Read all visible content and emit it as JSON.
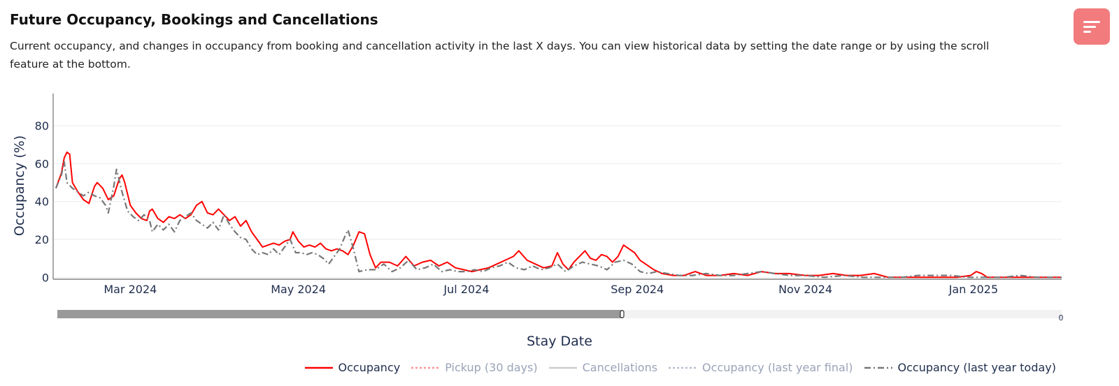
{
  "header": {
    "title": "Future Occupancy, Bookings and Cancellations",
    "description": "Current occupancy, and changes in occupancy from booking and cancellation activity in the last X days. You can view historical data by setting the date range or by using the scroll feature at the bottom."
  },
  "menu_button": {
    "icon": "menu-lines-icon",
    "color": "#f27b7e"
  },
  "slider": {
    "end_label": "0",
    "range_end_label": "0"
  },
  "chart_data": {
    "type": "line",
    "title": "",
    "xlabel": "Stay Date",
    "ylabel": "Occupancy (%)",
    "x_type": "date",
    "xlim": [
      "2024-02-02",
      "2025-02-02"
    ],
    "ylim": [
      -1,
      97
    ],
    "yticks": [
      0,
      20,
      40,
      60,
      80
    ],
    "xticks": [
      {
        "date": "2024-03-01",
        "label": "Mar 2024"
      },
      {
        "date": "2024-05-01",
        "label": "May 2024"
      },
      {
        "date": "2024-07-01",
        "label": "Jul 2024"
      },
      {
        "date": "2024-09-01",
        "label": "Sep 2024"
      },
      {
        "date": "2024-11-01",
        "label": "Nov 2024"
      },
      {
        "date": "2025-01-01",
        "label": "Jan 2025"
      }
    ],
    "grid": true,
    "legend_position": "bottom-right",
    "series": [
      {
        "name": "Occupancy",
        "color": "#ff0000",
        "dash": "solid",
        "visible": true,
        "points": [
          [
            "2024-02-03",
            47
          ],
          [
            "2024-02-05",
            55
          ],
          [
            "2024-02-06",
            63
          ],
          [
            "2024-02-07",
            66
          ],
          [
            "2024-02-08",
            65
          ],
          [
            "2024-02-09",
            50
          ],
          [
            "2024-02-11",
            45
          ],
          [
            "2024-02-13",
            41
          ],
          [
            "2024-02-15",
            39
          ],
          [
            "2024-02-17",
            48
          ],
          [
            "2024-02-18",
            50
          ],
          [
            "2024-02-20",
            47
          ],
          [
            "2024-02-22",
            41
          ],
          [
            "2024-02-24",
            43
          ],
          [
            "2024-02-26",
            52
          ],
          [
            "2024-02-27",
            54
          ],
          [
            "2024-02-28",
            50
          ],
          [
            "2024-03-01",
            38
          ],
          [
            "2024-03-03",
            34
          ],
          [
            "2024-03-05",
            31
          ],
          [
            "2024-03-07",
            30
          ],
          [
            "2024-03-08",
            35
          ],
          [
            "2024-03-09",
            36
          ],
          [
            "2024-03-11",
            31
          ],
          [
            "2024-03-13",
            29
          ],
          [
            "2024-03-15",
            32
          ],
          [
            "2024-03-17",
            31
          ],
          [
            "2024-03-19",
            33
          ],
          [
            "2024-03-21",
            31
          ],
          [
            "2024-03-23",
            33
          ],
          [
            "2024-03-25",
            38
          ],
          [
            "2024-03-27",
            40
          ],
          [
            "2024-03-29",
            34
          ],
          [
            "2024-03-31",
            33
          ],
          [
            "2024-04-02",
            36
          ],
          [
            "2024-04-04",
            33
          ],
          [
            "2024-04-06",
            30
          ],
          [
            "2024-04-08",
            32
          ],
          [
            "2024-04-10",
            27
          ],
          [
            "2024-04-12",
            30
          ],
          [
            "2024-04-14",
            24
          ],
          [
            "2024-04-16",
            20
          ],
          [
            "2024-04-18",
            16
          ],
          [
            "2024-04-20",
            17
          ],
          [
            "2024-04-22",
            18
          ],
          [
            "2024-04-24",
            17
          ],
          [
            "2024-04-26",
            19
          ],
          [
            "2024-04-28",
            20
          ],
          [
            "2024-04-29",
            24
          ],
          [
            "2024-05-01",
            19
          ],
          [
            "2024-05-03",
            16
          ],
          [
            "2024-05-05",
            17
          ],
          [
            "2024-05-07",
            16
          ],
          [
            "2024-05-09",
            18
          ],
          [
            "2024-05-11",
            15
          ],
          [
            "2024-05-13",
            14
          ],
          [
            "2024-05-15",
            15
          ],
          [
            "2024-05-17",
            14
          ],
          [
            "2024-05-19",
            12
          ],
          [
            "2024-05-21",
            17
          ],
          [
            "2024-05-23",
            24
          ],
          [
            "2024-05-25",
            23
          ],
          [
            "2024-05-27",
            12
          ],
          [
            "2024-05-29",
            5
          ],
          [
            "2024-05-31",
            8
          ],
          [
            "2024-06-03",
            8
          ],
          [
            "2024-06-06",
            6
          ],
          [
            "2024-06-09",
            11
          ],
          [
            "2024-06-12",
            6
          ],
          [
            "2024-06-15",
            8
          ],
          [
            "2024-06-18",
            9
          ],
          [
            "2024-06-21",
            6
          ],
          [
            "2024-06-24",
            8
          ],
          [
            "2024-06-27",
            5
          ],
          [
            "2024-06-30",
            4
          ],
          [
            "2024-07-03",
            3
          ],
          [
            "2024-07-06",
            4
          ],
          [
            "2024-07-09",
            5
          ],
          [
            "2024-07-12",
            7
          ],
          [
            "2024-07-15",
            9
          ],
          [
            "2024-07-18",
            11
          ],
          [
            "2024-07-20",
            14
          ],
          [
            "2024-07-23",
            9
          ],
          [
            "2024-07-26",
            7
          ],
          [
            "2024-07-29",
            5
          ],
          [
            "2024-08-01",
            6
          ],
          [
            "2024-08-03",
            13
          ],
          [
            "2024-08-05",
            7
          ],
          [
            "2024-08-07",
            4
          ],
          [
            "2024-08-09",
            8
          ],
          [
            "2024-08-11",
            11
          ],
          [
            "2024-08-13",
            14
          ],
          [
            "2024-08-15",
            10
          ],
          [
            "2024-08-17",
            9
          ],
          [
            "2024-08-19",
            12
          ],
          [
            "2024-08-21",
            11
          ],
          [
            "2024-08-23",
            8
          ],
          [
            "2024-08-25",
            11
          ],
          [
            "2024-08-27",
            17
          ],
          [
            "2024-08-29",
            15
          ],
          [
            "2024-08-31",
            13
          ],
          [
            "2024-09-02",
            9
          ],
          [
            "2024-09-04",
            7
          ],
          [
            "2024-09-07",
            4
          ],
          [
            "2024-09-10",
            2
          ],
          [
            "2024-09-14",
            1
          ],
          [
            "2024-09-18",
            1
          ],
          [
            "2024-09-22",
            3
          ],
          [
            "2024-09-26",
            1
          ],
          [
            "2024-10-01",
            1
          ],
          [
            "2024-10-06",
            2
          ],
          [
            "2024-10-11",
            1
          ],
          [
            "2024-10-16",
            3
          ],
          [
            "2024-10-21",
            2
          ],
          [
            "2024-10-26",
            2
          ],
          [
            "2024-11-01",
            1
          ],
          [
            "2024-11-06",
            1
          ],
          [
            "2024-11-11",
            2
          ],
          [
            "2024-11-16",
            1
          ],
          [
            "2024-11-21",
            1
          ],
          [
            "2024-11-26",
            2
          ],
          [
            "2024-12-01",
            0
          ],
          [
            "2024-12-06",
            0
          ],
          [
            "2024-12-11",
            0
          ],
          [
            "2024-12-16",
            0
          ],
          [
            "2024-12-21",
            0
          ],
          [
            "2024-12-26",
            0
          ],
          [
            "2024-12-31",
            1
          ],
          [
            "2025-01-02",
            3
          ],
          [
            "2025-01-04",
            2
          ],
          [
            "2025-01-06",
            0
          ],
          [
            "2025-01-12",
            0
          ],
          [
            "2025-01-20",
            0
          ],
          [
            "2025-01-28",
            0
          ],
          [
            "2025-02-02",
            0
          ]
        ]
      },
      {
        "name": "Pickup (30 days)",
        "color": "#ff6666",
        "dash": "dot",
        "visible": false,
        "points": []
      },
      {
        "name": "Cancellations",
        "color": "#b8b8b8",
        "dash": "solid",
        "visible": false,
        "points": []
      },
      {
        "name": "Occupancy (last year final)",
        "color": "#9aa3b8",
        "dash": "dot",
        "visible": false,
        "points": []
      },
      {
        "name": "Occupancy (last year today)",
        "color": "#777777",
        "dash": "dashdot",
        "visible": true,
        "points": [
          [
            "2024-02-03",
            47
          ],
          [
            "2024-02-05",
            54
          ],
          [
            "2024-02-06",
            61
          ],
          [
            "2024-02-07",
            50
          ],
          [
            "2024-02-09",
            47
          ],
          [
            "2024-02-11",
            45
          ],
          [
            "2024-02-13",
            43
          ],
          [
            "2024-02-15",
            45
          ],
          [
            "2024-02-17",
            43
          ],
          [
            "2024-02-19",
            42
          ],
          [
            "2024-02-21",
            38
          ],
          [
            "2024-02-22",
            34
          ],
          [
            "2024-02-24",
            48
          ],
          [
            "2024-02-25",
            57
          ],
          [
            "2024-02-27",
            45
          ],
          [
            "2024-02-29",
            35
          ],
          [
            "2024-03-02",
            32
          ],
          [
            "2024-03-04",
            30
          ],
          [
            "2024-03-06",
            33
          ],
          [
            "2024-03-08",
            30
          ],
          [
            "2024-03-09",
            24
          ],
          [
            "2024-03-11",
            28
          ],
          [
            "2024-03-13",
            25
          ],
          [
            "2024-03-15",
            28
          ],
          [
            "2024-03-17",
            24
          ],
          [
            "2024-03-19",
            30
          ],
          [
            "2024-03-21",
            32
          ],
          [
            "2024-03-23",
            34
          ],
          [
            "2024-03-25",
            30
          ],
          [
            "2024-03-27",
            28
          ],
          [
            "2024-03-29",
            26
          ],
          [
            "2024-03-31",
            29
          ],
          [
            "2024-04-02",
            25
          ],
          [
            "2024-04-04",
            33
          ],
          [
            "2024-04-06",
            28
          ],
          [
            "2024-04-08",
            24
          ],
          [
            "2024-04-10",
            21
          ],
          [
            "2024-04-12",
            20
          ],
          [
            "2024-04-14",
            15
          ],
          [
            "2024-04-16",
            12
          ],
          [
            "2024-04-18",
            13
          ],
          [
            "2024-04-20",
            12
          ],
          [
            "2024-04-22",
            15
          ],
          [
            "2024-04-24",
            12
          ],
          [
            "2024-04-26",
            16
          ],
          [
            "2024-04-28",
            20
          ],
          [
            "2024-04-30",
            13
          ],
          [
            "2024-05-02",
            13
          ],
          [
            "2024-05-04",
            12
          ],
          [
            "2024-05-06",
            13
          ],
          [
            "2024-05-08",
            12
          ],
          [
            "2024-05-10",
            10
          ],
          [
            "2024-05-12",
            7
          ],
          [
            "2024-05-14",
            11
          ],
          [
            "2024-05-16",
            15
          ],
          [
            "2024-05-18",
            22
          ],
          [
            "2024-05-19",
            25
          ],
          [
            "2024-05-21",
            15
          ],
          [
            "2024-05-23",
            3
          ],
          [
            "2024-05-26",
            4
          ],
          [
            "2024-05-29",
            4
          ],
          [
            "2024-06-01",
            7
          ],
          [
            "2024-06-04",
            3
          ],
          [
            "2024-06-07",
            5
          ],
          [
            "2024-06-10",
            9
          ],
          [
            "2024-06-13",
            4
          ],
          [
            "2024-06-16",
            5
          ],
          [
            "2024-06-19",
            7
          ],
          [
            "2024-06-22",
            3
          ],
          [
            "2024-06-25",
            4
          ],
          [
            "2024-06-28",
            3
          ],
          [
            "2024-07-01",
            3
          ],
          [
            "2024-07-04",
            4
          ],
          [
            "2024-07-07",
            3
          ],
          [
            "2024-07-10",
            5
          ],
          [
            "2024-07-13",
            6
          ],
          [
            "2024-07-16",
            8
          ],
          [
            "2024-07-19",
            5
          ],
          [
            "2024-07-22",
            4
          ],
          [
            "2024-07-25",
            6
          ],
          [
            "2024-07-28",
            4
          ],
          [
            "2024-07-31",
            5
          ],
          [
            "2024-08-03",
            7
          ],
          [
            "2024-08-06",
            3
          ],
          [
            "2024-08-09",
            6
          ],
          [
            "2024-08-12",
            8
          ],
          [
            "2024-08-15",
            7
          ],
          [
            "2024-08-18",
            6
          ],
          [
            "2024-08-21",
            4
          ],
          [
            "2024-08-24",
            8
          ],
          [
            "2024-08-27",
            9
          ],
          [
            "2024-08-30",
            7
          ],
          [
            "2024-09-02",
            3
          ],
          [
            "2024-09-05",
            2
          ],
          [
            "2024-09-08",
            3
          ],
          [
            "2024-09-12",
            2
          ],
          [
            "2024-09-16",
            1
          ],
          [
            "2024-09-21",
            1
          ],
          [
            "2024-09-26",
            2
          ],
          [
            "2024-10-01",
            1
          ],
          [
            "2024-10-06",
            1
          ],
          [
            "2024-10-11",
            2
          ],
          [
            "2024-10-16",
            3
          ],
          [
            "2024-10-21",
            2
          ],
          [
            "2024-10-26",
            1
          ],
          [
            "2024-11-01",
            1
          ],
          [
            "2024-11-08",
            0
          ],
          [
            "2024-11-15",
            1
          ],
          [
            "2024-11-22",
            0
          ],
          [
            "2024-11-29",
            0
          ],
          [
            "2024-12-06",
            0
          ],
          [
            "2024-12-12",
            1
          ],
          [
            "2024-12-18",
            1
          ],
          [
            "2024-12-24",
            1
          ],
          [
            "2024-12-30",
            0
          ],
          [
            "2025-01-06",
            0
          ],
          [
            "2025-01-12",
            0
          ],
          [
            "2025-01-18",
            1
          ],
          [
            "2025-01-24",
            0
          ],
          [
            "2025-02-02",
            0
          ]
        ]
      }
    ]
  }
}
